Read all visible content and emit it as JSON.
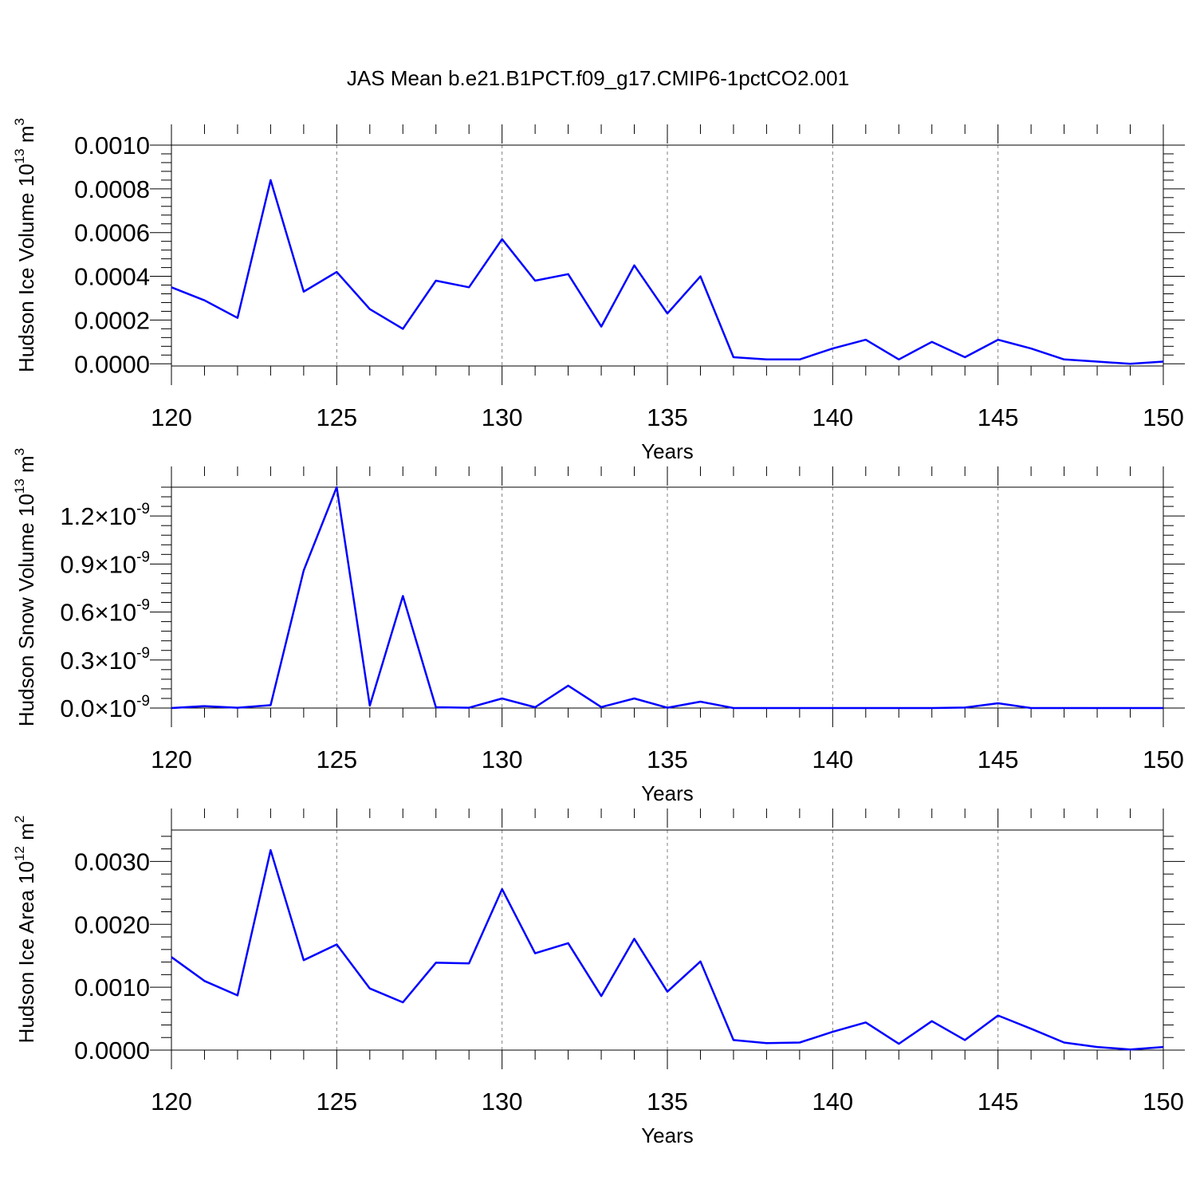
{
  "title": "JAS Mean b.e21.B1PCT.f09_g17.CMIP6-1pctCO2.001",
  "colors": {
    "line": "#0000ff",
    "axes": "#000000",
    "grid": "#808080"
  },
  "chart_data": [
    {
      "type": "line",
      "xlabel": "Years",
      "ylabel": "Hudson Ice Volume 10",
      "ylabel_exp": "13",
      "ylabel_unit": " m",
      "ylabel_unit_exp": "3",
      "xlim": [
        120,
        150
      ],
      "ylim": [
        -1e-05,
        0.001
      ],
      "xticks": [
        120,
        125,
        130,
        135,
        140,
        145,
        150
      ],
      "yticks": [
        0.0,
        0.0002,
        0.0004,
        0.0006,
        0.0008,
        0.001
      ],
      "ytick_labels": [
        "0.0000",
        "0.0002",
        "0.0004",
        "0.0006",
        "0.0008",
        "0.0010"
      ],
      "grid": "vertical dashed at major x ticks",
      "x": [
        120,
        121,
        122,
        123,
        124,
        125,
        126,
        127,
        128,
        129,
        130,
        131,
        132,
        133,
        134,
        135,
        136,
        137,
        138,
        139,
        140,
        141,
        142,
        143,
        144,
        145,
        146,
        147,
        148,
        149,
        150
      ],
      "series": [
        {
          "values": [
            0.00035,
            0.00029,
            0.00021,
            0.00084,
            0.00033,
            0.00042,
            0.00025,
            0.00016,
            0.00038,
            0.00035,
            0.00057,
            0.00038,
            0.00041,
            0.00017,
            0.00045,
            0.00023,
            0.0004,
            3e-05,
            2e-05,
            2e-05,
            7e-05,
            0.00011,
            2e-05,
            0.0001,
            3e-05,
            0.00011,
            7e-05,
            2e-05,
            1e-05,
            0.0,
            1e-05
          ]
        }
      ]
    },
    {
      "type": "line",
      "xlabel": "Years",
      "ylabel": "Hudson Snow Volume 10",
      "ylabel_exp": "13",
      "ylabel_unit": " m",
      "ylabel_unit_exp": "3",
      "xlim": [
        120,
        150
      ],
      "ylim": [
        0,
        1.38e-09
      ],
      "xticks": [
        120,
        125,
        130,
        135,
        140,
        145,
        150
      ],
      "yticks": [
        0,
        3e-10,
        6e-10,
        9e-10,
        1.2e-09
      ],
      "ytick_labels": [
        "0.0",
        "0.3",
        "0.6",
        "0.9",
        "1.2"
      ],
      "ytick_suffix": "×10",
      "ytick_exp": "-9",
      "grid": "vertical dashed at major x ticks",
      "x": [
        120,
        121,
        122,
        123,
        124,
        125,
        126,
        127,
        128,
        129,
        130,
        131,
        132,
        133,
        134,
        135,
        136,
        137,
        138,
        139,
        140,
        141,
        142,
        143,
        144,
        145,
        146,
        147,
        148,
        149,
        150
      ],
      "series": [
        {
          "values": [
            0,
            1.2e-11,
            2e-12,
            1.8e-11,
            8.6e-10,
            1.38e-09,
            1.5e-11,
            7e-10,
            5e-12,
            2e-12,
            6e-11,
            5e-12,
            1.4e-10,
            6e-12,
            6e-11,
            2e-12,
            4e-11,
            0,
            0,
            0,
            0,
            0,
            0,
            0,
            3e-12,
            3e-11,
            0,
            0,
            0,
            0,
            0
          ]
        }
      ]
    },
    {
      "type": "line",
      "xlabel": "Years",
      "ylabel": "Hudson Ice Area 10",
      "ylabel_exp": "12",
      "ylabel_unit": " m",
      "ylabel_unit_exp": "2",
      "xlim": [
        120,
        150
      ],
      "ylim": [
        0,
        0.0035
      ],
      "xticks": [
        120,
        125,
        130,
        135,
        140,
        145,
        150
      ],
      "yticks": [
        0.0,
        0.001,
        0.002,
        0.003
      ],
      "ytick_labels": [
        "0.0000",
        "0.0010",
        "0.0020",
        "0.0030"
      ],
      "grid": "vertical dashed at major x ticks",
      "x": [
        120,
        121,
        122,
        123,
        124,
        125,
        126,
        127,
        128,
        129,
        130,
        131,
        132,
        133,
        134,
        135,
        136,
        137,
        138,
        139,
        140,
        141,
        142,
        143,
        144,
        145,
        146,
        147,
        148,
        149,
        150
      ],
      "series": [
        {
          "values": [
            0.00148,
            0.0011,
            0.00087,
            0.00318,
            0.00143,
            0.00168,
            0.00098,
            0.00076,
            0.00139,
            0.00138,
            0.00256,
            0.00154,
            0.0017,
            0.00086,
            0.00177,
            0.00093,
            0.00141,
            0.00016,
            0.00011,
            0.00012,
            0.00029,
            0.00044,
            0.0001,
            0.00046,
            0.00016,
            0.00055,
            0.00034,
            0.00012,
            5e-05,
            1e-05,
            5e-05
          ]
        }
      ]
    }
  ]
}
